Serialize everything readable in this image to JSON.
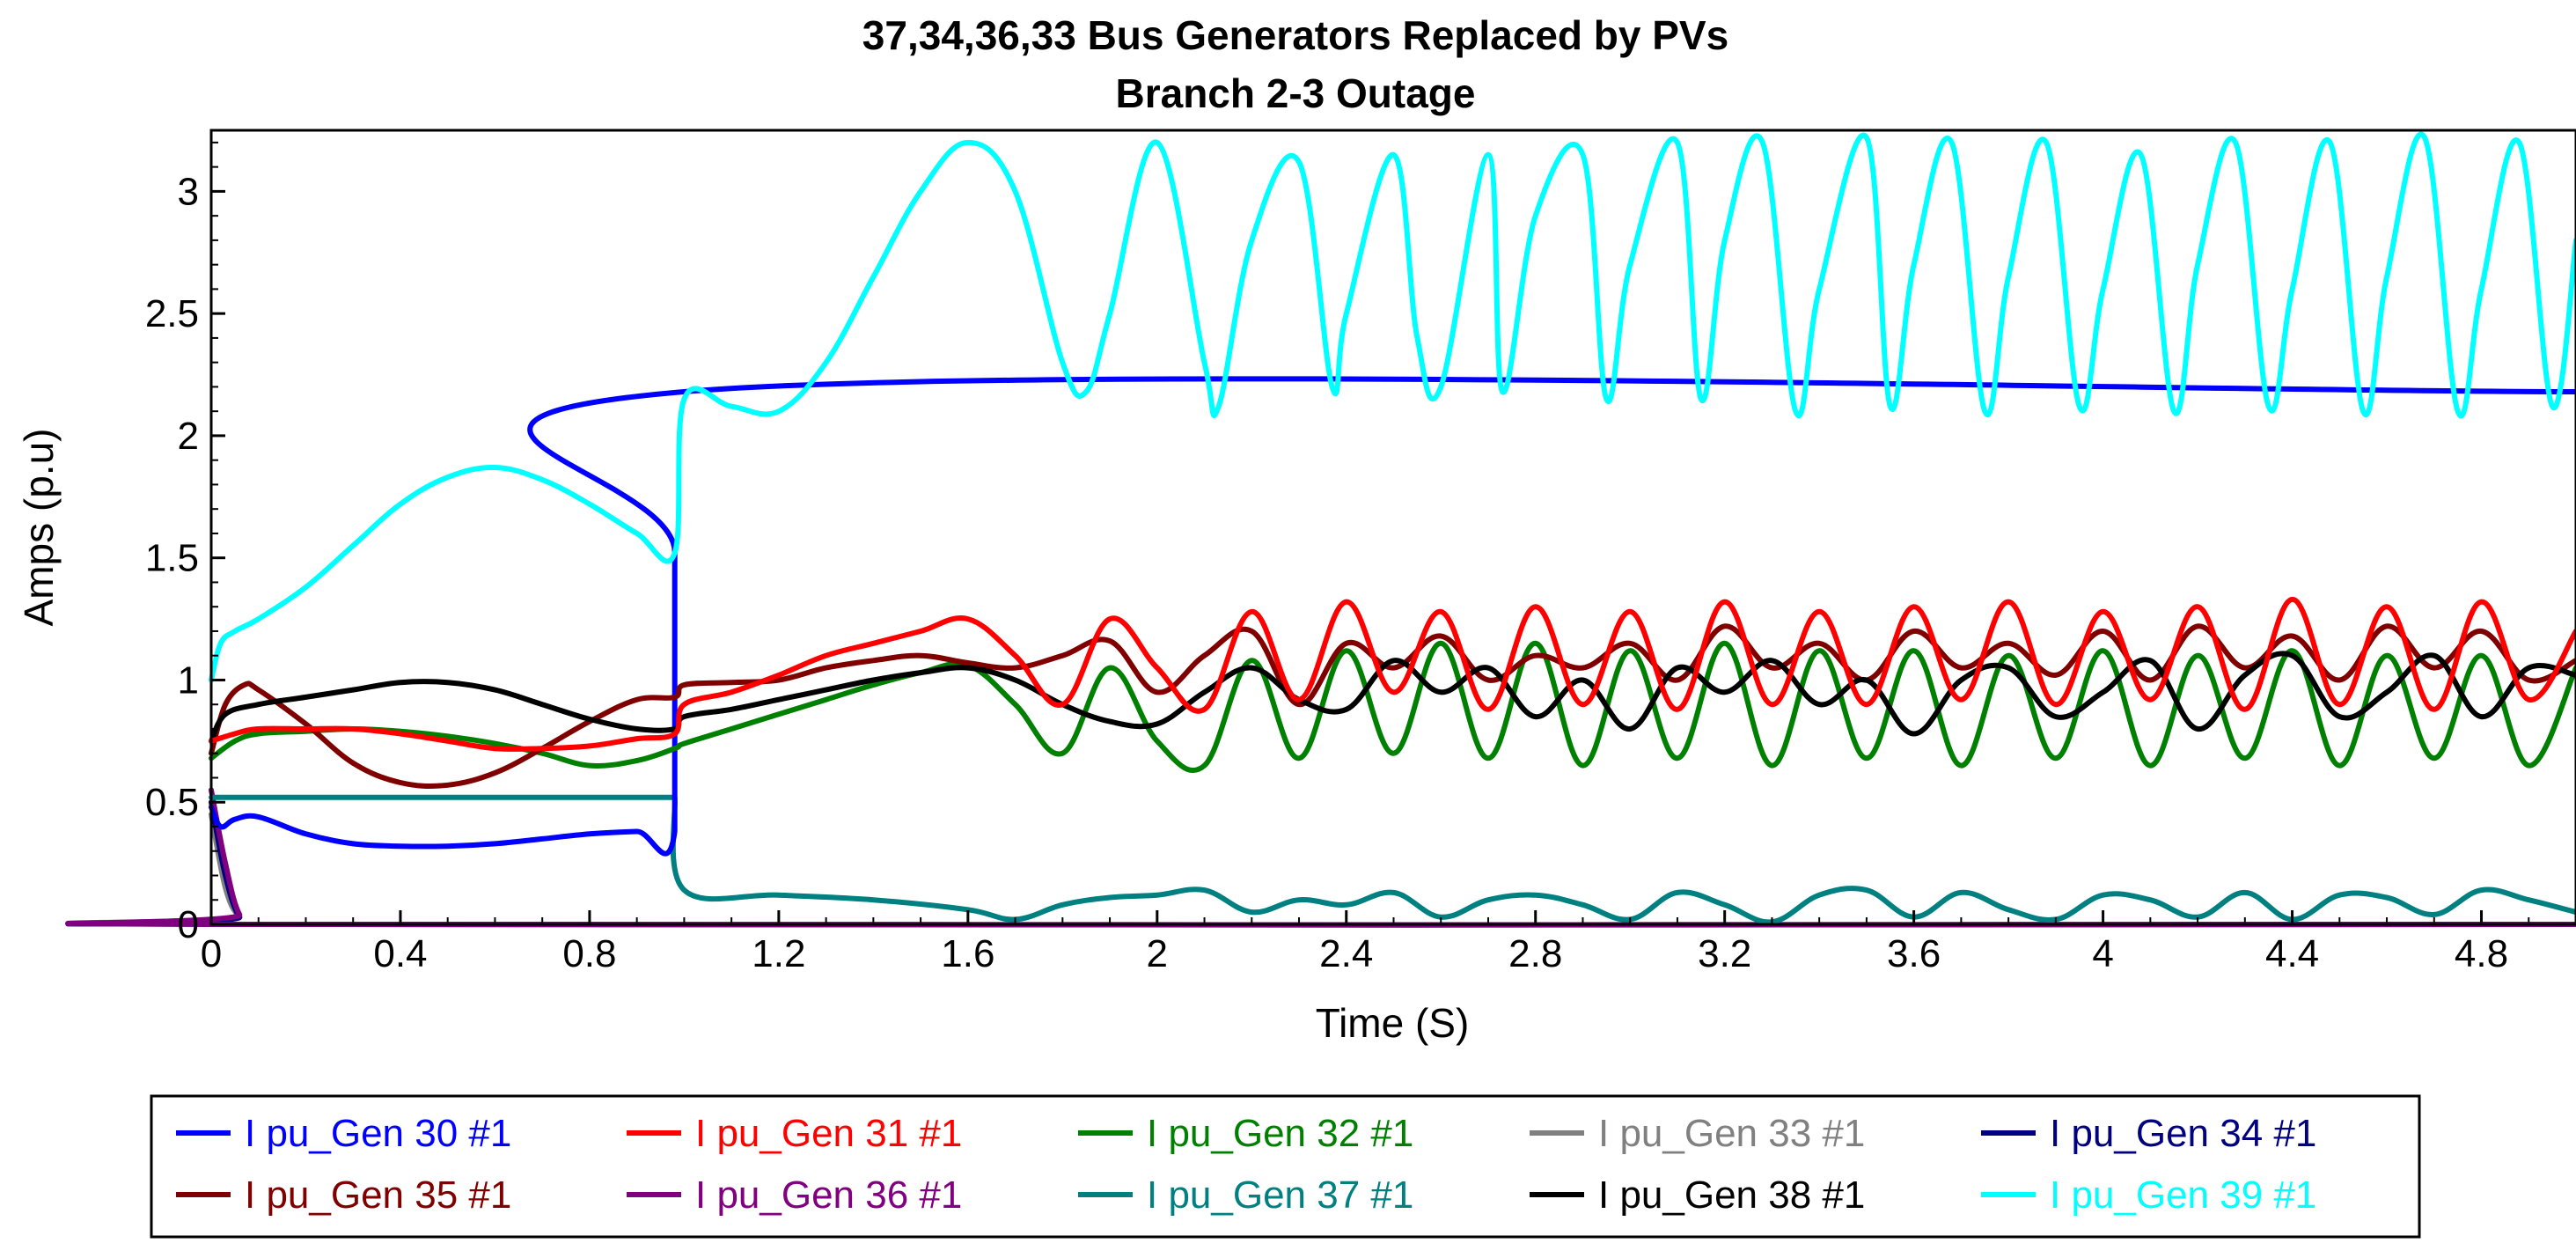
{
  "chart_data": {
    "type": "line",
    "title": "37,34,36,33  Bus Generators Replaced by PVs",
    "subtitle": "Branch 2-3 Outage",
    "xlabel": "Time (S)",
    "ylabel": "Amps (p.u)",
    "xlim": [
      0,
      5.0
    ],
    "ylim": [
      0,
      3.25
    ],
    "xticks": [
      0,
      0.4,
      0.8,
      1.2,
      1.6,
      2,
      2.4,
      2.8,
      3.2,
      3.6,
      4,
      4.4,
      4.8
    ],
    "xtick_labels": [
      "0",
      "0.4",
      "0.8",
      "1.2",
      "1.6",
      "2",
      "2.4",
      "2.8",
      "3.2",
      "3.6",
      "4",
      "4.4",
      "4.8"
    ],
    "yticks": [
      0,
      0.5,
      1,
      1.5,
      2,
      2.5,
      3
    ],
    "ytick_labels": [
      "0",
      "0.5",
      "1",
      "1.5",
      "2",
      "2.5",
      "3"
    ],
    "grid": false,
    "legend_position": "bottom",
    "series": [
      {
        "name": "I pu_Gen 30 #1",
        "color": "#0000ff",
        "x": [
          0,
          0.02,
          0.05,
          0.1,
          0.2,
          0.3,
          0.4,
          0.5,
          0.6,
          0.7,
          0.8,
          0.9,
          0.98,
          0.98,
          1.0,
          5.0
        ],
        "y": [
          0.48,
          0.4,
          0.43,
          0.44,
          0.37,
          0.33,
          0.32,
          0.32,
          0.33,
          0.35,
          0.37,
          0.38,
          0.38,
          1.52,
          2.18,
          2.18
        ]
      },
      {
        "name": "I pu_Gen 31 #1",
        "color": "#ff0000",
        "x": [
          0,
          0.05,
          0.1,
          0.2,
          0.3,
          0.4,
          0.5,
          0.6,
          0.7,
          0.8,
          0.9,
          0.98,
          1.0,
          1.1,
          1.2,
          1.3,
          1.4,
          1.5,
          1.6,
          1.7,
          1.8,
          1.9,
          2.0,
          2.1,
          2.2,
          2.3,
          2.4,
          2.5,
          2.6,
          2.7,
          2.8,
          2.9,
          3.0,
          3.1,
          3.2,
          3.3,
          3.4,
          3.5,
          3.6,
          3.7,
          3.8,
          3.9,
          4.0,
          4.1,
          4.2,
          4.3,
          4.4,
          4.5,
          4.6,
          4.7,
          4.8,
          4.9,
          5.0
        ],
        "y": [
          0.75,
          0.78,
          0.8,
          0.8,
          0.8,
          0.78,
          0.75,
          0.72,
          0.72,
          0.73,
          0.76,
          0.78,
          0.9,
          0.95,
          1.02,
          1.1,
          1.15,
          1.2,
          1.25,
          1.1,
          0.9,
          1.25,
          1.05,
          0.88,
          1.28,
          0.92,
          1.32,
          0.95,
          1.28,
          0.88,
          1.3,
          0.9,
          1.28,
          0.88,
          1.32,
          0.9,
          1.28,
          0.9,
          1.3,
          0.92,
          1.32,
          0.9,
          1.28,
          0.92,
          1.3,
          0.88,
          1.33,
          0.9,
          1.3,
          0.88,
          1.32,
          0.92,
          1.2
        ]
      },
      {
        "name": "I pu_Gen 32 #1",
        "color": "#008000",
        "x": [
          0,
          0.05,
          0.1,
          0.2,
          0.3,
          0.4,
          0.5,
          0.6,
          0.7,
          0.8,
          0.9,
          0.98,
          1.0,
          1.1,
          1.2,
          1.3,
          1.4,
          1.5,
          1.6,
          1.7,
          1.8,
          1.9,
          2.0,
          2.1,
          2.2,
          2.3,
          2.4,
          2.5,
          2.6,
          2.7,
          2.8,
          2.9,
          3.0,
          3.1,
          3.2,
          3.3,
          3.4,
          3.5,
          3.6,
          3.7,
          3.8,
          3.9,
          4.0,
          4.1,
          4.2,
          4.3,
          4.4,
          4.5,
          4.6,
          4.7,
          4.8,
          4.9,
          5.0
        ],
        "y": [
          0.68,
          0.75,
          0.78,
          0.79,
          0.8,
          0.79,
          0.77,
          0.74,
          0.7,
          0.65,
          0.67,
          0.72,
          0.74,
          0.8,
          0.86,
          0.92,
          0.98,
          1.03,
          1.06,
          0.9,
          0.7,
          1.05,
          0.75,
          0.65,
          1.08,
          0.68,
          1.12,
          0.7,
          1.15,
          0.68,
          1.15,
          0.65,
          1.12,
          0.68,
          1.15,
          0.65,
          1.12,
          0.68,
          1.12,
          0.65,
          1.1,
          0.68,
          1.12,
          0.65,
          1.1,
          0.68,
          1.12,
          0.65,
          1.1,
          0.68,
          1.1,
          0.65,
          1.05
        ]
      },
      {
        "name": "I pu_Gen 33 #1",
        "color": "#808080",
        "x": [
          0,
          0.03,
          0.06,
          0.1,
          5.0
        ],
        "y": [
          0.45,
          0.15,
          0.03,
          0.0,
          0.0
        ]
      },
      {
        "name": "I pu_Gen 34 #1",
        "color": "#000080",
        "x": [
          0,
          0.03,
          0.06,
          0.1,
          5.0
        ],
        "y": [
          0.5,
          0.2,
          0.03,
          0.0,
          0.0
        ]
      },
      {
        "name": "I pu_Gen 35 #1",
        "color": "#800000",
        "x": [
          0,
          0.03,
          0.07,
          0.1,
          0.2,
          0.3,
          0.4,
          0.5,
          0.6,
          0.7,
          0.8,
          0.9,
          0.98,
          1.0,
          1.1,
          1.2,
          1.3,
          1.4,
          1.5,
          1.6,
          1.7,
          1.8,
          1.9,
          2.0,
          2.1,
          2.2,
          2.3,
          2.4,
          2.5,
          2.6,
          2.7,
          2.8,
          2.9,
          3.0,
          3.1,
          3.2,
          3.3,
          3.4,
          3.5,
          3.6,
          3.7,
          3.8,
          3.9,
          4.0,
          4.1,
          4.2,
          4.3,
          4.4,
          4.5,
          4.6,
          4.7,
          4.8,
          4.9,
          5.0
        ],
        "y": [
          0.7,
          0.9,
          0.98,
          0.96,
          0.82,
          0.66,
          0.58,
          0.57,
          0.62,
          0.72,
          0.83,
          0.92,
          0.93,
          0.98,
          0.99,
          1.0,
          1.05,
          1.08,
          1.1,
          1.07,
          1.05,
          1.1,
          1.16,
          0.95,
          1.1,
          1.2,
          0.9,
          1.15,
          1.05,
          1.18,
          1.0,
          1.1,
          1.05,
          1.15,
          1.0,
          1.22,
          1.05,
          1.15,
          1.0,
          1.2,
          1.05,
          1.15,
          1.02,
          1.2,
          1.0,
          1.22,
          1.05,
          1.18,
          1.0,
          1.22,
          1.05,
          1.2,
          1.0,
          1.08
        ]
      },
      {
        "name": "I pu_Gen 36 #1",
        "color": "#800080",
        "x": [
          0,
          0.03,
          0.06,
          0.1,
          5.0
        ],
        "y": [
          0.55,
          0.25,
          0.04,
          0.0,
          0.0
        ]
      },
      {
        "name": "I pu_Gen 37 #1",
        "color": "#008080",
        "x": [
          0,
          0.98,
          0.98,
          1.0,
          1.2,
          1.4,
          1.6,
          1.7,
          1.8,
          1.9,
          2.0,
          2.1,
          2.2,
          2.3,
          2.4,
          2.5,
          2.6,
          2.7,
          2.8,
          2.9,
          3.0,
          3.1,
          3.2,
          3.3,
          3.4,
          3.5,
          3.6,
          3.7,
          3.8,
          3.9,
          4.0,
          4.1,
          4.2,
          4.3,
          4.4,
          4.5,
          4.6,
          4.7,
          4.8,
          4.9,
          5.0
        ],
        "y": [
          0.52,
          0.52,
          0.52,
          0.14,
          0.12,
          0.1,
          0.06,
          0.02,
          0.08,
          0.11,
          0.12,
          0.14,
          0.05,
          0.1,
          0.08,
          0.13,
          0.03,
          0.1,
          0.12,
          0.08,
          0.02,
          0.13,
          0.08,
          0.01,
          0.12,
          0.14,
          0.03,
          0.13,
          0.06,
          0.02,
          0.12,
          0.1,
          0.03,
          0.13,
          0.02,
          0.12,
          0.11,
          0.04,
          0.14,
          0.1,
          0.05
        ]
      },
      {
        "name": "I pu_Gen 38 #1",
        "color": "#000000",
        "x": [
          0,
          0.03,
          0.1,
          0.2,
          0.3,
          0.4,
          0.5,
          0.6,
          0.7,
          0.8,
          0.9,
          0.98,
          1.0,
          1.1,
          1.2,
          1.3,
          1.4,
          1.5,
          1.6,
          1.7,
          1.8,
          1.9,
          2.0,
          2.1,
          2.2,
          2.3,
          2.4,
          2.5,
          2.6,
          2.7,
          2.8,
          2.9,
          3.0,
          3.1,
          3.2,
          3.3,
          3.4,
          3.5,
          3.6,
          3.7,
          3.8,
          3.9,
          4.0,
          4.1,
          4.2,
          4.3,
          4.4,
          4.5,
          4.6,
          4.7,
          4.8,
          4.9,
          5.0
        ],
        "y": [
          0.75,
          0.86,
          0.9,
          0.93,
          0.96,
          0.99,
          0.99,
          0.96,
          0.9,
          0.84,
          0.8,
          0.8,
          0.85,
          0.88,
          0.92,
          0.96,
          1.0,
          1.03,
          1.05,
          1.0,
          0.9,
          0.83,
          0.82,
          0.95,
          1.05,
          0.92,
          0.88,
          1.08,
          0.95,
          1.05,
          0.85,
          1.0,
          0.8,
          1.05,
          0.95,
          1.08,
          0.9,
          1.0,
          0.78,
          1.0,
          1.05,
          0.85,
          0.95,
          1.08,
          0.8,
          1.02,
          1.1,
          0.85,
          0.95,
          1.1,
          0.85,
          1.05,
          1.02
        ]
      },
      {
        "name": "I pu_Gen 39 #1",
        "color": "#00ffff",
        "x": [
          0,
          0.02,
          0.05,
          0.1,
          0.2,
          0.3,
          0.4,
          0.5,
          0.6,
          0.7,
          0.8,
          0.9,
          0.98,
          1.0,
          1.1,
          1.2,
          1.3,
          1.4,
          1.5,
          1.6,
          1.7,
          1.8,
          1.85,
          1.9,
          2.0,
          2.1,
          2.13,
          2.2,
          2.3,
          2.37,
          2.4,
          2.5,
          2.55,
          2.6,
          2.7,
          2.73,
          2.8,
          2.9,
          2.95,
          3.0,
          3.1,
          3.15,
          3.2,
          3.28,
          3.35,
          3.4,
          3.5,
          3.55,
          3.6,
          3.68,
          3.75,
          3.8,
          3.88,
          3.95,
          4.0,
          4.08,
          4.15,
          4.2,
          4.28,
          4.35,
          4.4,
          4.48,
          4.55,
          4.6,
          4.68,
          4.75,
          4.8,
          4.88,
          4.95,
          5.0
        ],
        "y": [
          1.0,
          1.15,
          1.2,
          1.25,
          1.38,
          1.55,
          1.72,
          1.83,
          1.87,
          1.82,
          1.72,
          1.6,
          1.52,
          2.15,
          2.12,
          2.1,
          2.3,
          2.65,
          3.0,
          3.2,
          3.0,
          2.3,
          2.18,
          2.5,
          3.2,
          2.3,
          2.12,
          2.8,
          3.12,
          2.2,
          2.5,
          3.15,
          2.4,
          2.2,
          3.15,
          2.18,
          2.9,
          3.15,
          2.15,
          2.7,
          3.2,
          2.15,
          2.8,
          3.2,
          2.1,
          2.6,
          3.22,
          2.12,
          2.7,
          3.2,
          2.1,
          2.65,
          3.2,
          2.12,
          2.6,
          3.15,
          2.1,
          2.7,
          3.2,
          2.12,
          2.6,
          3.2,
          2.1,
          2.65,
          3.22,
          2.1,
          2.6,
          3.2,
          2.12,
          2.8
        ]
      }
    ]
  },
  "legend": {
    "items": [
      "I pu_Gen 30 #1",
      "I pu_Gen 31 #1",
      "I pu_Gen 32 #1",
      "I pu_Gen 33 #1",
      "I pu_Gen 34 #1",
      "I pu_Gen 35 #1",
      "I pu_Gen 36 #1",
      "I pu_Gen 37 #1",
      "I pu_Gen 38 #1",
      "I pu_Gen 39 #1"
    ]
  }
}
